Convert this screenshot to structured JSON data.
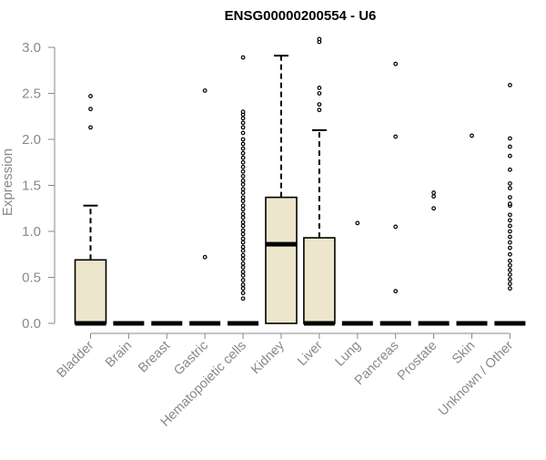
{
  "chart_data": {
    "type": "boxplot",
    "title": "ENSG00000200554 - U6",
    "xlabel": "",
    "ylabel": "Expression",
    "ylim": [
      0,
      3.0
    ],
    "yticks": [
      "0.0",
      "0.5",
      "1.0",
      "1.5",
      "2.0",
      "2.5",
      "3.0"
    ],
    "ytick_values": [
      0,
      0.5,
      1.0,
      1.5,
      2.0,
      2.5,
      3.0
    ],
    "grid": false,
    "colors": {
      "box_fill": "#ede6cc",
      "stroke": "#000000",
      "axis": "#888888",
      "text": "#888888"
    },
    "categories": [
      "Bladder",
      "Brain",
      "Breast",
      "Gastric",
      "Hematopoietic cells",
      "Kidney",
      "Liver",
      "Lung",
      "Pancreas",
      "Prostate",
      "Skin",
      "Unknown / Other"
    ],
    "boxes": [
      {
        "q1": 0,
        "median": 0,
        "q3": 0.69,
        "whisker_low": 0,
        "whisker_high": 1.28,
        "outliers": [
          2.13,
          2.33,
          2.47
        ]
      },
      {
        "q1": 0,
        "median": 0,
        "q3": 0,
        "whisker_low": 0,
        "whisker_high": 0,
        "outliers": []
      },
      {
        "q1": 0,
        "median": 0,
        "q3": 0,
        "whisker_low": 0,
        "whisker_high": 0,
        "outliers": []
      },
      {
        "q1": 0,
        "median": 0,
        "q3": 0,
        "whisker_low": 0,
        "whisker_high": 0,
        "outliers": [
          0.72,
          2.53
        ]
      },
      {
        "q1": 0,
        "median": 0,
        "q3": 0,
        "whisker_low": 0,
        "whisker_high": 0,
        "outliers": [
          0.27,
          0.33,
          0.38,
          0.42,
          0.47,
          0.52,
          0.56,
          0.61,
          0.65,
          0.7,
          0.74,
          0.79,
          0.83,
          0.88,
          0.92,
          0.97,
          1.01,
          1.06,
          1.1,
          1.15,
          1.19,
          1.24,
          1.28,
          1.33,
          1.37,
          1.42,
          1.46,
          1.51,
          1.55,
          1.6,
          1.65,
          1.7,
          1.75,
          1.8,
          1.85,
          1.9,
          1.95,
          2.0,
          2.07,
          2.13,
          2.18,
          2.23,
          2.27,
          2.3,
          2.89
        ]
      },
      {
        "q1": 0,
        "median": 0.86,
        "q3": 1.37,
        "whisker_low": 0,
        "whisker_high": 2.91,
        "outliers": []
      },
      {
        "q1": 0,
        "median": 0,
        "q3": 0.93,
        "whisker_low": 0,
        "whisker_high": 2.1,
        "outliers": [
          2.32,
          2.38,
          2.5,
          2.56,
          3.06,
          3.09
        ]
      },
      {
        "q1": 0,
        "median": 0,
        "q3": 0,
        "whisker_low": 0,
        "whisker_high": 0,
        "outliers": [
          1.09
        ]
      },
      {
        "q1": 0,
        "median": 0,
        "q3": 0,
        "whisker_low": 0,
        "whisker_high": 0,
        "outliers": [
          0.35,
          1.05,
          2.03,
          2.82
        ]
      },
      {
        "q1": 0,
        "median": 0,
        "q3": 0,
        "whisker_low": 0,
        "whisker_high": 0,
        "outliers": [
          1.25,
          1.38,
          1.42
        ]
      },
      {
        "q1": 0,
        "median": 0,
        "q3": 0,
        "whisker_low": 0,
        "whisker_high": 0,
        "outliers": [
          2.04
        ]
      },
      {
        "q1": 0,
        "median": 0,
        "q3": 0,
        "whisker_low": 0,
        "whisker_high": 0,
        "outliers": [
          0.38,
          0.43,
          0.48,
          0.53,
          0.58,
          0.63,
          0.68,
          0.75,
          0.82,
          0.88,
          0.94,
          1.0,
          1.06,
          1.12,
          1.18,
          1.28,
          1.3,
          1.37,
          1.47,
          1.52,
          1.67,
          1.82,
          1.92,
          2.01,
          2.59
        ]
      }
    ]
  }
}
